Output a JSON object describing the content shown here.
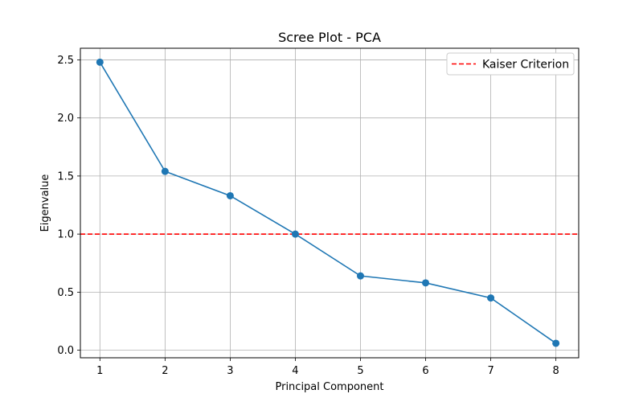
{
  "chart_data": {
    "type": "line",
    "title": "Scree Plot - PCA",
    "xlabel": "Principal Component",
    "ylabel": "Eigenvalue",
    "x": [
      1,
      2,
      3,
      4,
      5,
      6,
      7,
      8
    ],
    "xticks": [
      "1",
      "2",
      "3",
      "4",
      "5",
      "6",
      "7",
      "8"
    ],
    "yticks": [
      "0.0",
      "0.5",
      "1.0",
      "1.5",
      "2.0",
      "2.5"
    ],
    "xlim": [
      0.7,
      8.35
    ],
    "ylim": [
      -0.065,
      2.6
    ],
    "series": [
      {
        "values": [
          2.48,
          1.54,
          1.33,
          1.0,
          0.64,
          0.58,
          0.45,
          0.06
        ],
        "color": "#1f77b4",
        "marker": "circle"
      }
    ],
    "reference_lines": [
      {
        "name": "Kaiser Criterion",
        "axis": "y",
        "value": 1.0,
        "style": "dashed",
        "color": "#ff0000"
      }
    ],
    "grid": true,
    "legend_position": "top-right"
  }
}
